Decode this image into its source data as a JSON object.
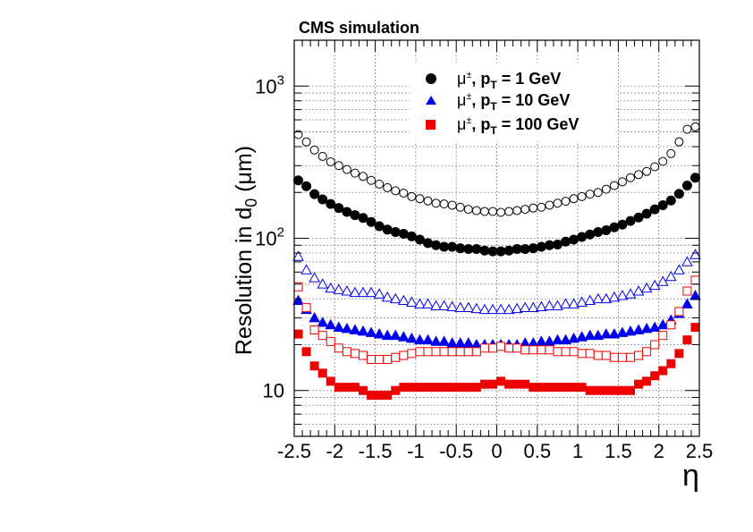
{
  "chart_data": {
    "type": "scatter",
    "title": "CMS simulation",
    "xlabel": "η",
    "ylabel": "Resolution in d0 (μm)",
    "ylabel_main": "Resolution in d",
    "ylabel_sub": "0",
    "ylabel_unit": " (μm)",
    "xlim": [
      -2.5,
      2.5
    ],
    "ylim": [
      5,
      2000
    ],
    "yscale": "log",
    "grid": true,
    "legend_position": "top-center",
    "x_ticks": [
      -2.5,
      -2,
      -1.5,
      -1,
      -0.5,
      0,
      0.5,
      1,
      1.5,
      2,
      2.5
    ],
    "x_tick_labels": [
      "-2.5",
      "-2",
      "-1.5",
      "-1",
      "-0.5",
      "0",
      "0.5",
      "1",
      "1.5",
      "2",
      "2.5"
    ],
    "y_tick_labels": [
      {
        "value": 10,
        "base": "10",
        "exp": ""
      },
      {
        "value": 100,
        "base": "10",
        "exp": "2"
      },
      {
        "value": 1000,
        "base": "10",
        "exp": "3"
      }
    ],
    "x": [
      -2.45,
      -2.35,
      -2.25,
      -2.15,
      -2.05,
      -1.95,
      -1.85,
      -1.75,
      -1.65,
      -1.55,
      -1.45,
      -1.35,
      -1.25,
      -1.15,
      -1.05,
      -0.95,
      -0.85,
      -0.75,
      -0.65,
      -0.55,
      -0.45,
      -0.35,
      -0.25,
      -0.15,
      -0.05,
      0.05,
      0.15,
      0.25,
      0.35,
      0.45,
      0.55,
      0.65,
      0.75,
      0.85,
      0.95,
      1.05,
      1.15,
      1.25,
      1.35,
      1.45,
      1.55,
      1.65,
      1.75,
      1.85,
      1.95,
      2.05,
      2.15,
      2.25,
      2.35,
      2.45
    ],
    "series": [
      {
        "name": "μ±, pT = 1 GeV",
        "legend_main": "μ",
        "legend_sup": "±",
        "legend_p": ", p",
        "legend_sub": "T",
        "legend_rest": " = 1 GeV",
        "marker": "circle",
        "filled": true,
        "color": "#000000",
        "values": [
          240,
          220,
          195,
          180,
          168,
          158,
          149,
          142,
          136,
          128,
          120,
          114,
          110,
          107,
          103,
          98,
          93,
          90,
          88,
          88,
          86,
          85,
          85,
          83,
          82,
          82,
          83,
          85,
          85,
          86,
          88,
          90,
          91,
          95,
          98,
          102,
          106,
          110,
          113,
          118,
          123,
          130,
          137,
          145,
          155,
          165,
          177,
          196,
          222,
          250
        ]
      },
      {
        "name": "μ±, pT = 1 GeV (open)",
        "marker": "circle",
        "filled": false,
        "color": "#000000",
        "values": [
          480,
          430,
          380,
          345,
          318,
          300,
          283,
          268,
          255,
          240,
          227,
          215,
          205,
          198,
          188,
          182,
          176,
          170,
          168,
          165,
          160,
          155,
          152,
          150,
          150,
          148,
          150,
          152,
          155,
          158,
          160,
          165,
          170,
          175,
          182,
          188,
          195,
          200,
          210,
          222,
          235,
          250,
          262,
          275,
          295,
          320,
          360,
          430,
          520,
          540
        ]
      },
      {
        "name": "μ±, pT = 10 GeV",
        "legend_main": "μ",
        "legend_sup": "±",
        "legend_p": ", p",
        "legend_sub": "T",
        "legend_rest": " = 10 GeV",
        "marker": "triangle",
        "filled": true,
        "color": "#0000ee",
        "values": [
          39,
          34,
          30,
          28,
          27,
          26,
          25.5,
          25,
          24.5,
          24,
          23.5,
          23,
          23,
          22.5,
          22,
          21.5,
          21.5,
          21,
          21,
          20.5,
          20.5,
          20.5,
          20,
          20,
          20,
          20,
          20,
          20,
          20.5,
          20.5,
          21,
          21,
          21.5,
          21.5,
          22,
          22.5,
          23,
          23,
          23.5,
          23.5,
          24,
          24.5,
          25,
          25.5,
          26,
          27,
          29,
          32,
          37,
          42
        ]
      },
      {
        "name": "μ±, pT = 10 GeV (open)",
        "marker": "triangle",
        "filled": false,
        "color": "#0000ee",
        "values": [
          76,
          62,
          55,
          50,
          47,
          46,
          45,
          44,
          44,
          44,
          43,
          41,
          40,
          39,
          38,
          37,
          37,
          36,
          36,
          35.5,
          35,
          35,
          34.5,
          34,
          34,
          34,
          34,
          34.5,
          35,
          35,
          35.5,
          36,
          36,
          37,
          37,
          38,
          39,
          40,
          40,
          41,
          42,
          43,
          45,
          47,
          49,
          52,
          56,
          62,
          70,
          78
        ]
      },
      {
        "name": "μ±, pT = 100 GeV",
        "legend_main": "μ",
        "legend_sup": "±",
        "legend_p": ", p",
        "legend_sub": "T",
        "legend_rest": " = 100 GeV",
        "marker": "square",
        "filled": true,
        "color": "#ee0000",
        "values": [
          23.5,
          18,
          14.5,
          13,
          11.5,
          10.5,
          10.5,
          10.5,
          10,
          9.3,
          9.3,
          9.3,
          10,
          10.5,
          10.5,
          10.5,
          10.5,
          10.5,
          10.5,
          10.5,
          10.5,
          10.5,
          10.5,
          11,
          11,
          11.5,
          11,
          11,
          11,
          10.5,
          10.5,
          10.5,
          10.5,
          10.5,
          10.5,
          10.5,
          10,
          10,
          10,
          10,
          10,
          10,
          11,
          11.5,
          12.5,
          13.5,
          15,
          17.5,
          21.5,
          26
        ]
      },
      {
        "name": "μ±, pT = 100 GeV (open)",
        "marker": "square",
        "filled": false,
        "color": "#ee0000",
        "values": [
          48,
          35,
          25,
          23,
          21,
          19,
          18,
          17.5,
          17,
          16,
          16,
          16,
          16.5,
          17,
          17.5,
          18,
          18,
          18,
          18,
          18,
          18,
          18,
          18,
          19,
          19,
          19.5,
          19,
          19,
          18.5,
          18.5,
          18.5,
          18.5,
          18,
          18,
          18,
          17.5,
          17.5,
          17,
          17,
          16.5,
          16.5,
          16.5,
          17,
          18,
          20,
          23,
          27,
          33,
          45,
          53
        ]
      }
    ]
  }
}
